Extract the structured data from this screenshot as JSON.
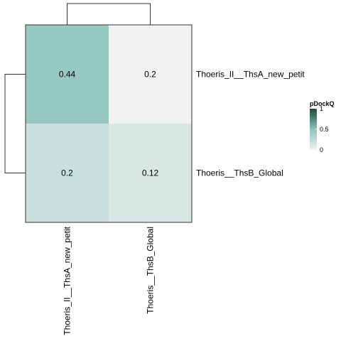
{
  "chart_data": {
    "type": "heatmap",
    "title": "",
    "rows": [
      "Thoeris_II__ThsA_new_petit",
      "Thoeris__ThsB_Global"
    ],
    "columns": [
      "Thoeris_II__ThsA_new_petit",
      "Thoeris__ThsB_Global"
    ],
    "values": [
      [
        0.44,
        0.2
      ],
      [
        0.2,
        0.12
      ]
    ],
    "cell_labels": [
      [
        "0.44",
        "0.2"
      ],
      [
        "0.2",
        "0.12"
      ]
    ],
    "value_range": [
      0,
      1
    ],
    "colors": {
      "low": "#f2f2f2",
      "mid": "#8bc3b9",
      "high": "#1f4a3c",
      "empty_cell": "#f2f2f2",
      "border": "#333333",
      "dendrogram": "#333333"
    },
    "legend": {
      "title": "pDockQ",
      "ticks": [
        {
          "value": 0,
          "label": "0"
        },
        {
          "value": 0.5,
          "label": "0.5"
        },
        {
          "value": 1,
          "label": "1"
        }
      ],
      "placement": "right"
    },
    "lower_triangle_only": true,
    "dendrograms": {
      "rows": true,
      "columns": true
    }
  }
}
